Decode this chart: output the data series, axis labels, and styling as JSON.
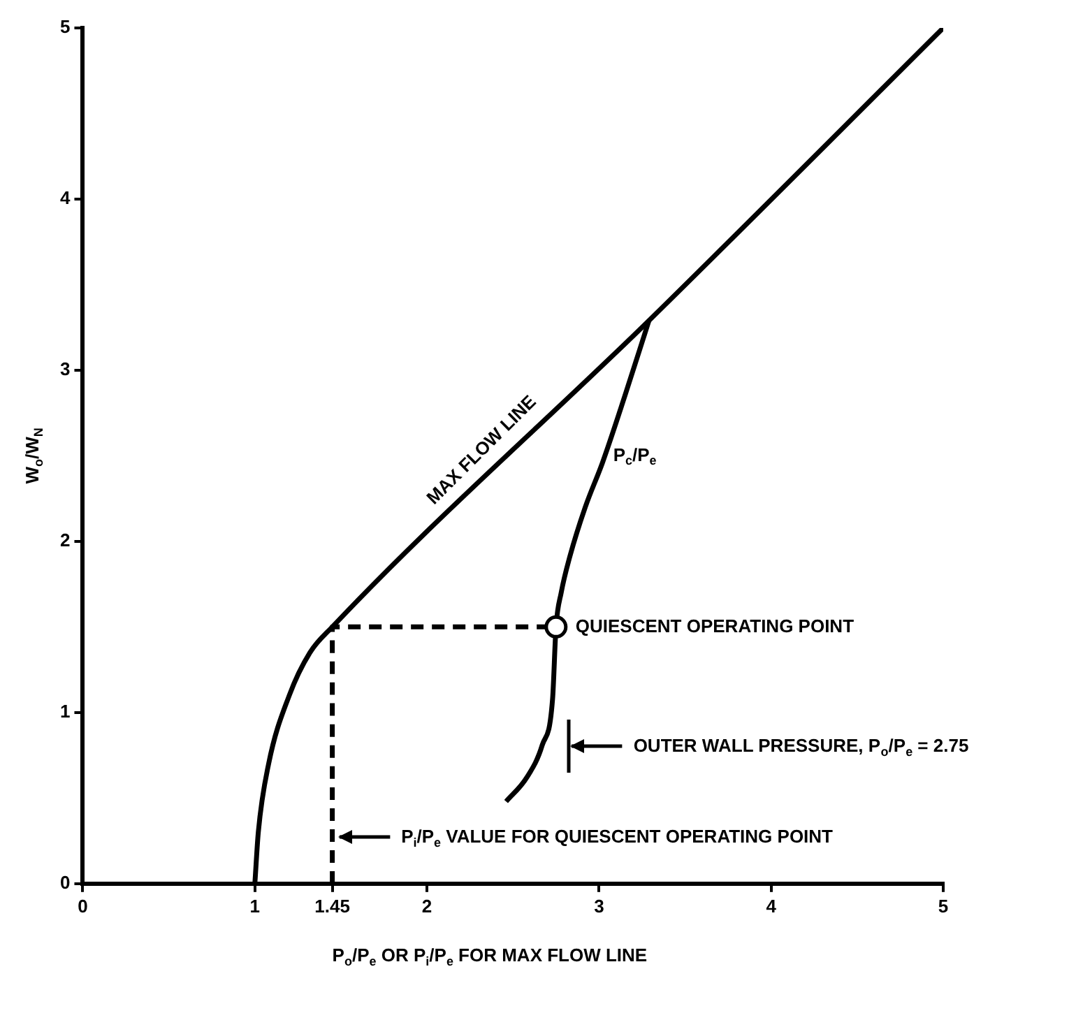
{
  "chart_data": {
    "type": "line",
    "xlabel": "P$_{o}$/P$_{e}$ OR P$_{i}$/P$_{e}$ FOR MAX FLOW LINE",
    "ylabel": "W$_{o}$/W$_{N}$",
    "xlim": [
      0,
      5
    ],
    "ylim": [
      0,
      5
    ],
    "xticks": [
      0,
      1,
      1.45,
      2,
      3,
      4,
      5
    ],
    "yticks": [
      0,
      1,
      2,
      3,
      4,
      5
    ],
    "grid": false,
    "legend": false,
    "marker": "none",
    "series": [
      {
        "color": "#000000",
        "x": [
          1,
          1.02,
          1.08,
          1.2,
          1.32,
          1.45,
          3.3,
          5
        ],
        "values": [
          0,
          0.3,
          0.7,
          1.1,
          1.35,
          1.5,
          3.3,
          5
        ]
      },
      {
        "color": "#000000",
        "x": [
          3.29,
          3.15,
          3.02,
          2.92,
          2.83,
          2.78,
          2.75,
          2.73,
          2.67,
          2.58,
          2.46
        ],
        "values": [
          3.29,
          2.85,
          2.46,
          2.2,
          1.91,
          1.7,
          1.5,
          1.08,
          0.81,
          0.62,
          0.48
        ]
      },
      {
        "color": "#000000",
        "line_style": "dashed",
        "x": [
          1.45,
          1.45,
          2.75
        ],
        "values": [
          0,
          1.5,
          1.5
        ]
      },
      {
        "type": "scatter",
        "marker": "circle",
        "color": "#000000",
        "x": [
          2.75
        ],
        "values": [
          1.5
        ]
      }
    ],
    "annotations": [
      {
        "text": "MAX FLOW LINE",
        "x": 2.4,
        "y": 2.45
      },
      {
        "text": "P$_{c}$/P$_{e}$",
        "x": 3.05,
        "y": 2.5
      },
      {
        "text": "QUIESCENT OPERATING POINT",
        "x": 2.75,
        "y": 1.5
      },
      "OUTER WALL PRESSURE, P$_{o}$/P$_{e}$ = 2.75",
      "P$_{i}$/P$_{e}$ VALUE FOR QUIESCENT OPERATING POINT"
    ]
  }
}
